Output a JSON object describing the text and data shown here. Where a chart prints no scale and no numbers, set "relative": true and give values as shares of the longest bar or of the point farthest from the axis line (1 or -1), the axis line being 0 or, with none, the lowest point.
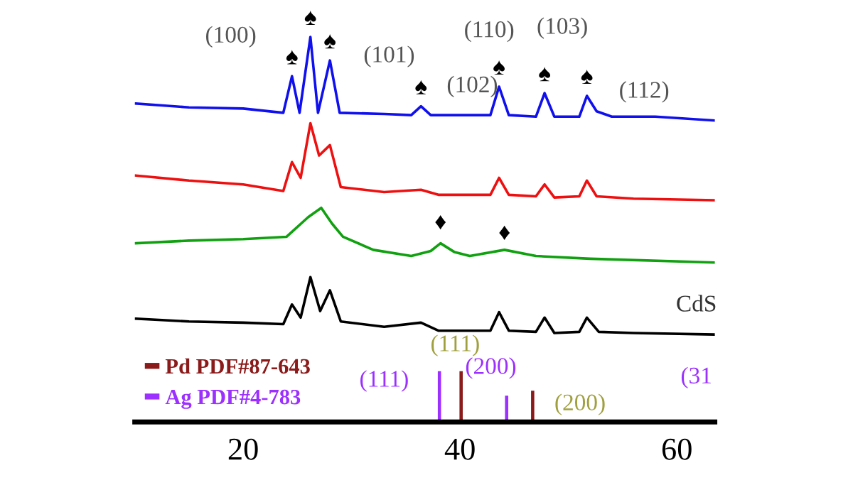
{
  "chart_data": {
    "type": "line",
    "relative": true,
    "xlim": [
      10,
      63.5
    ],
    "xticks": [
      20,
      40,
      60
    ],
    "tick_labels": "x",
    "grid": false,
    "legend": "bottom left",
    "marker": "none",
    "line_style": "solid",
    "series": [
      {
        "color": "#1010ee",
        "x": [
          10.1,
          15,
          20,
          23.7,
          24.5,
          25.2,
          26.2,
          26.9,
          28.0,
          28.9,
          33,
          35.5,
          36.4,
          37.3,
          40,
          42.8,
          43.6,
          44.5,
          47,
          47.8,
          48.7,
          51,
          51.7,
          52.6,
          54,
          58,
          63.5
        ],
        "values": [
          0.827,
          0.817,
          0.814,
          0.803,
          0.898,
          0.803,
          1.0,
          0.803,
          0.939,
          0.803,
          0.8,
          0.797,
          0.82,
          0.797,
          0.797,
          0.797,
          0.871,
          0.797,
          0.793,
          0.854,
          0.793,
          0.793,
          0.847,
          0.807,
          0.793,
          0.793,
          0.783
        ]
      },
      {
        "color": "#ee1010",
        "x": [
          10.1,
          15,
          20,
          23.7,
          24.5,
          25.3,
          26.2,
          27.0,
          28.0,
          29.0,
          33,
          36.4,
          38,
          42.8,
          43.6,
          44.5,
          47,
          47.8,
          48.7,
          51,
          51.7,
          52.6,
          56,
          63.5
        ],
        "values": [
          0.64,
          0.627,
          0.617,
          0.6,
          0.675,
          0.634,
          0.776,
          0.692,
          0.719,
          0.61,
          0.597,
          0.603,
          0.59,
          0.59,
          0.634,
          0.59,
          0.586,
          0.617,
          0.583,
          0.586,
          0.627,
          0.586,
          0.58,
          0.576
        ]
      },
      {
        "color": "#10a010",
        "x": [
          10.1,
          15,
          20,
          24,
          26,
          27.2,
          28.2,
          29.2,
          32,
          35.5,
          37.3,
          38.2,
          39.5,
          40.9,
          44.1,
          47,
          52,
          63.5
        ],
        "values": [
          0.464,
          0.471,
          0.475,
          0.481,
          0.532,
          0.556,
          0.515,
          0.481,
          0.447,
          0.431,
          0.444,
          0.464,
          0.441,
          0.431,
          0.447,
          0.431,
          0.424,
          0.414
        ]
      },
      {
        "color": "#000000",
        "x": [
          10.1,
          15,
          20,
          23.7,
          24.5,
          25.3,
          26.2,
          27.1,
          28.0,
          29.0,
          33,
          36.4,
          38,
          42.8,
          43.6,
          44.5,
          47,
          47.8,
          48.7,
          51,
          51.7,
          52.8,
          56,
          63.5
        ],
        "values": [
          0.268,
          0.261,
          0.258,
          0.254,
          0.305,
          0.271,
          0.376,
          0.288,
          0.342,
          0.261,
          0.247,
          0.258,
          0.237,
          0.237,
          0.285,
          0.237,
          0.234,
          0.271,
          0.231,
          0.234,
          0.271,
          0.234,
          0.231,
          0.227
        ]
      },
      {
        "type": "bar",
        "name": "Pd PDF#87-643",
        "color": "#8b1a1a",
        "x": [
          40.1,
          46.7
        ],
        "values": [
          0.132,
          0.081
        ]
      },
      {
        "type": "bar",
        "name": "Ag PDF#4-783",
        "color": "#9b30ff",
        "x": [
          38.1,
          44.3
        ],
        "values": [
          0.132,
          0.068
        ]
      }
    ],
    "annotations": [
      {
        "text": "(100)",
        "x": 24.5,
        "y": 0.898
      },
      {
        "text": "(101)",
        "x": 28.0,
        "y": 0.939
      },
      {
        "text": "(102)",
        "x": 36.4,
        "y": 0.82
      },
      {
        "text": "(110)",
        "x": 43.6,
        "y": 0.871
      },
      {
        "text": "(103)",
        "x": 47.8,
        "y": 0.854
      },
      {
        "text": "(112)",
        "x": 51.7,
        "y": 0.847
      },
      {
        "text": "♠",
        "x": 24.5,
        "y": 0.898
      },
      {
        "text": "♠",
        "x": 26.2,
        "y": 1.0
      },
      {
        "text": "♠",
        "x": 28.0,
        "y": 0.939
      },
      {
        "text": "♠",
        "x": 36.4,
        "y": 0.82
      },
      {
        "text": "♠",
        "x": 43.6,
        "y": 0.871
      },
      {
        "text": "♠",
        "x": 47.8,
        "y": 0.854
      },
      {
        "text": "♠",
        "x": 51.7,
        "y": 0.847
      },
      {
        "text": "♦",
        "x": 38.2,
        "y": 0.464
      },
      {
        "text": "♦",
        "x": 44.1,
        "y": 0.447
      },
      "CdS",
      {
        "text": "(111)",
        "x": 38.1,
        "y": 0.132
      },
      {
        "text": "(111)",
        "x": 40.1,
        "y": 0.132
      },
      {
        "text": "(200)",
        "x": 44.3,
        "y": 0.068
      },
      {
        "text": "(200)",
        "x": 46.7,
        "y": 0.081
      },
      "(31"
    ]
  }
}
